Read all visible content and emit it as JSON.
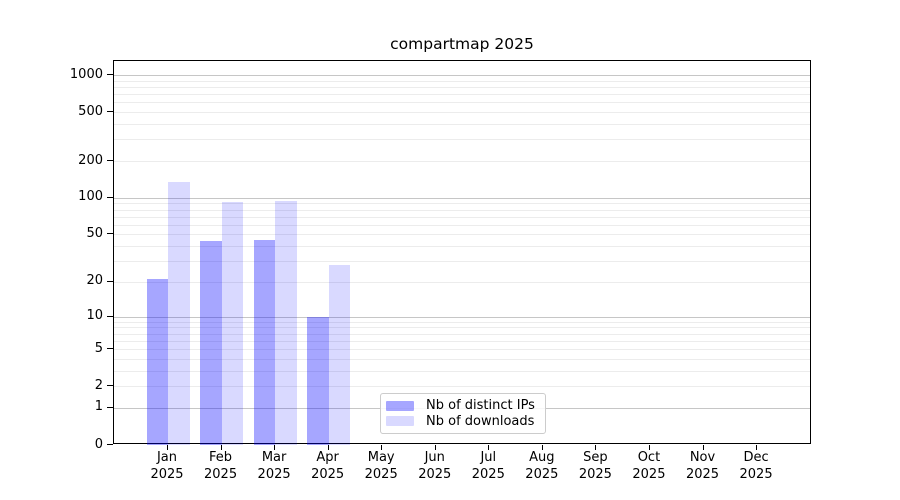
{
  "chart_data": {
    "type": "bar",
    "title": "compartmap 2025",
    "yscale": "log1p",
    "ylim": [
      0,
      1300
    ],
    "yticks": [
      0,
      1,
      2,
      5,
      10,
      20,
      50,
      100,
      200,
      500,
      1000
    ],
    "major_gridlines": [
      1,
      10,
      100,
      1000
    ],
    "minor_gridlines": [
      2,
      3,
      4,
      5,
      6,
      7,
      8,
      9,
      20,
      30,
      40,
      50,
      60,
      70,
      80,
      90,
      200,
      300,
      400,
      500,
      600,
      700,
      800,
      900
    ],
    "categories": [
      "Jan",
      "Feb",
      "Mar",
      "Apr",
      "May",
      "Jun",
      "Jul",
      "Aug",
      "Sep",
      "Oct",
      "Nov",
      "Dec"
    ],
    "x_year_label": "2025",
    "series": [
      {
        "name": "Nb of distinct IPs",
        "color_hex": "#0000ff",
        "alpha": 0.35,
        "values": [
          21,
          44,
          45,
          10,
          0,
          0,
          0,
          0,
          0,
          0,
          0,
          0
        ]
      },
      {
        "name": "Nb of downloads",
        "color_hex": "#0000ff",
        "alpha": 0.15,
        "values": [
          135,
          92,
          95,
          28,
          0,
          0,
          0,
          0,
          0,
          0,
          0,
          0
        ]
      }
    ],
    "legend_position": "lower-center",
    "colors": {
      "background": "#ffffff",
      "axis": "#000000",
      "text": "#000000",
      "major_grid": "#c6c6c6",
      "minor_grid": "#ececec",
      "bar_ips_on_white": "#a6a6f8",
      "bar_downloads_on_white": "#d9d9f8"
    }
  }
}
